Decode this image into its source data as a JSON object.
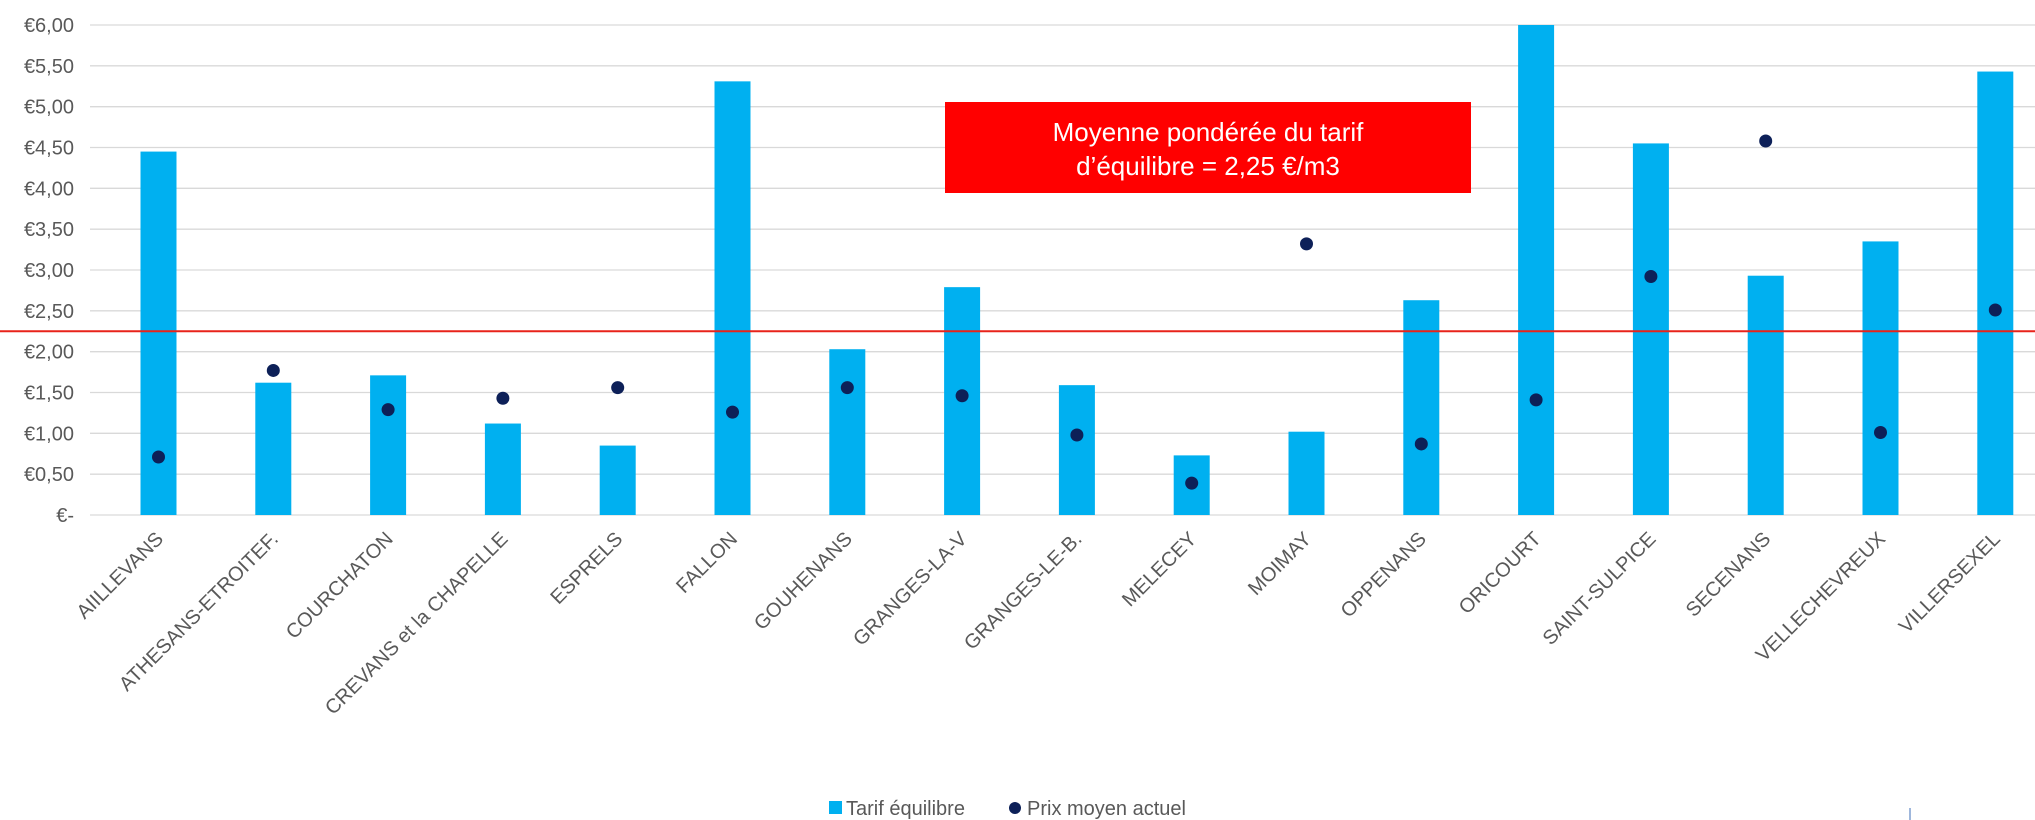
{
  "chart_data": {
    "type": "bar",
    "title": "",
    "xlabel": "",
    "ylabel": "",
    "ylim": [
      0,
      6
    ],
    "y_ticks": [
      0,
      0.5,
      1,
      1.5,
      2,
      2.5,
      3,
      3.5,
      4,
      4.5,
      5,
      5.5,
      6
    ],
    "y_tick_labels": [
      "€-",
      "€0,50",
      "€1,00",
      "€1,50",
      "€2,00",
      "€2,50",
      "€3,00",
      "€3,50",
      "€4,00",
      "€4,50",
      "€5,00",
      "€5,50",
      "€6,00"
    ],
    "grid": true,
    "legend_position": "bottom",
    "categories": [
      "AIILLEVANS",
      "ATHESANS-ETROITEF.",
      "COURCHATON",
      "CREVANS et la CHAPELLE",
      "ESPRELS",
      "FALLON",
      "GOUHENANS",
      "GRANGES-LA-V",
      "GRANGES-LE-B.",
      "MELECEY",
      "MOIMAY",
      "OPPENANS",
      "ORICOURT",
      "SAINT-SULPICE",
      "SECENANS",
      "VELLECHEVREUX",
      "VILLERSEXEL"
    ],
    "series": [
      {
        "name": "Tarif équilibre",
        "type": "bar",
        "color": "#00B0F0",
        "values": [
          4.45,
          1.62,
          1.71,
          1.12,
          0.85,
          5.31,
          2.03,
          2.79,
          1.59,
          0.73,
          1.02,
          2.63,
          6.0,
          4.55,
          2.93,
          3.35,
          5.43
        ]
      },
      {
        "name": "Prix moyen actuel",
        "type": "scatter",
        "color": "#0D2058",
        "values": [
          0.71,
          1.77,
          1.29,
          1.43,
          1.56,
          1.26,
          1.56,
          1.46,
          0.98,
          0.39,
          3.32,
          0.87,
          1.41,
          2.92,
          4.58,
          1.01,
          2.51
        ]
      }
    ],
    "reference_line": {
      "value": 2.25,
      "color": "#E8231A"
    },
    "annotation": {
      "text_line1": "Moyenne pondérée du tarif",
      "text_line2": "d’équilibre = 2,25 €/m3",
      "background": "#FF0000"
    }
  }
}
